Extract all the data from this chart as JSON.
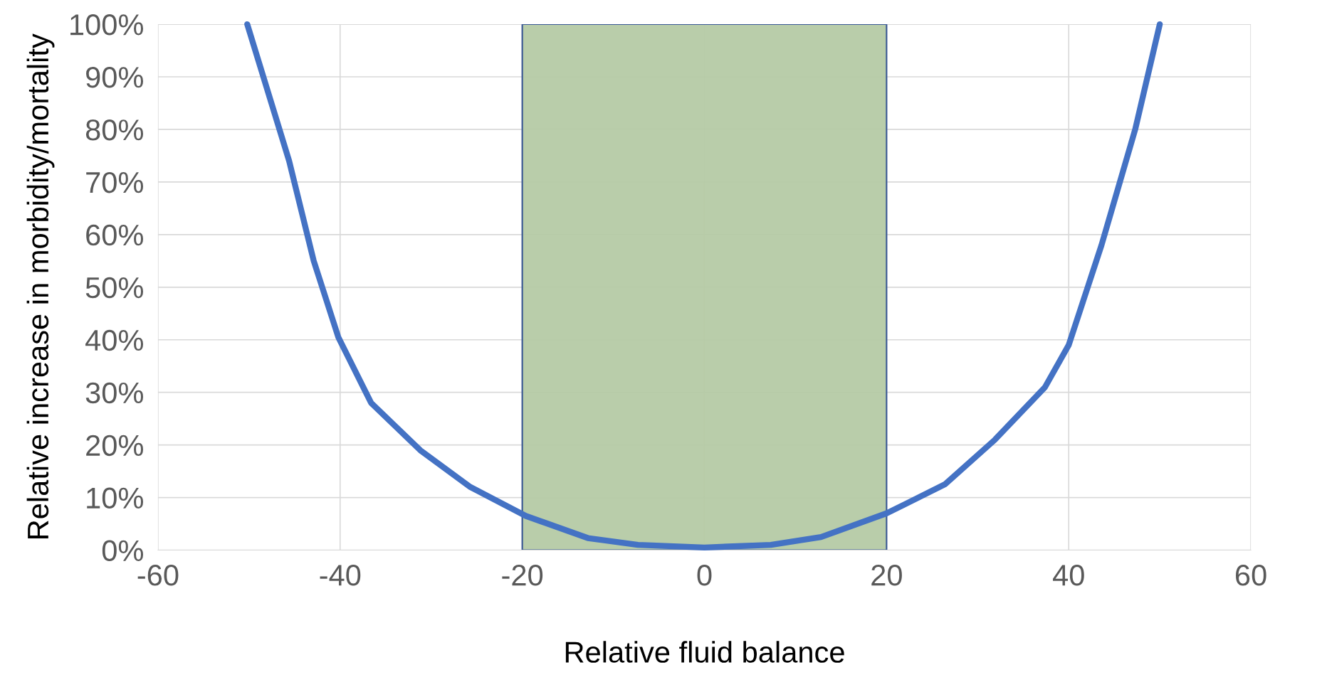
{
  "chart_data": {
    "type": "line",
    "xlabel": "Relative fluid balance",
    "ylabel": "Relative increase in morbidity/mortality",
    "xlim": [
      -60,
      60
    ],
    "xticks": [
      -60,
      -40,
      -20,
      0,
      20,
      40,
      60
    ],
    "ylim": [
      0,
      100
    ],
    "yticks": [
      {
        "value": 0,
        "label": "0%"
      },
      {
        "value": 10,
        "label": "10%"
      },
      {
        "value": 20,
        "label": "20%"
      },
      {
        "value": 30,
        "label": "30%"
      },
      {
        "value": 40,
        "label": "40%"
      },
      {
        "value": 50,
        "label": "50%"
      },
      {
        "value": 60,
        "label": "60%"
      },
      {
        "value": 70,
        "label": "70%"
      },
      {
        "value": 80,
        "label": "80%"
      },
      {
        "value": 90,
        "label": "90%"
      },
      {
        "value": 100,
        "label": "100%"
      }
    ],
    "grid": true,
    "series": [
      {
        "color": "#4472c4",
        "x": [
          -50.2,
          -45.6,
          -42.9,
          -40.2,
          -36.6,
          -31.2,
          -25.7,
          -19.6,
          -12.8,
          -7.3,
          0,
          7.3,
          12.8,
          20,
          26.4,
          31.9,
          37.4,
          40,
          43.6,
          47.3,
          50
        ],
        "values": [
          100,
          74,
          55,
          40.5,
          28,
          19,
          12,
          6.5,
          2.3,
          1,
          0.5,
          1,
          2.5,
          7,
          12.5,
          21,
          31,
          39,
          58,
          80,
          100
        ]
      }
    ],
    "bands": [
      {
        "axis": "x",
        "from": -20,
        "to": 20,
        "color": "#b6cba6"
      }
    ]
  }
}
